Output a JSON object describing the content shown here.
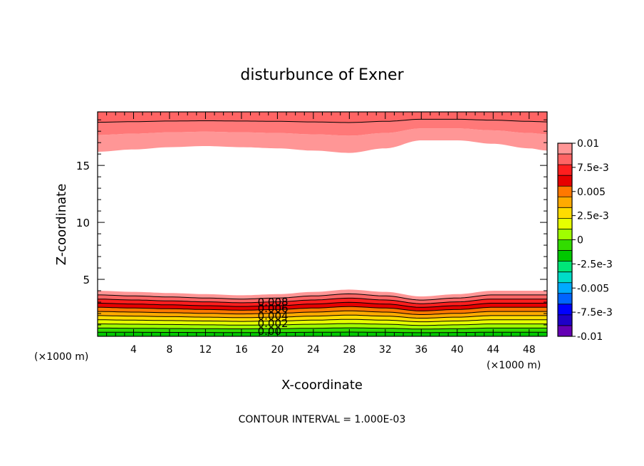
{
  "chart_data": {
    "type": "contour",
    "title": "disturbunce of Exner",
    "xlabel": "X-coordinate",
    "ylabel": "Z-coordinate",
    "x_unit_left": "(×1000 m)",
    "x_unit_right": "(×1000 m)",
    "footer": "CONTOUR INTERVAL = 1.000E-03",
    "xlim": [
      0,
      50
    ],
    "ylim": [
      0,
      19.7
    ],
    "x_ticks": [
      4,
      8,
      12,
      16,
      20,
      24,
      28,
      32,
      36,
      40,
      44,
      48
    ],
    "y_ticks": [
      5,
      10,
      15
    ],
    "contour_labels": [
      "0.008",
      "0.006",
      "0.004",
      "0.002",
      "0.00"
    ],
    "levels": [
      0,
      0.001,
      0.002,
      0.003,
      0.004,
      0.005,
      0.006,
      0.007,
      0.008,
      0.009,
      0.01
    ],
    "lower_band_top_profile": {
      "x": [
        0,
        4,
        8,
        12,
        16,
        20,
        24,
        28,
        32,
        36,
        40,
        44,
        48,
        50
      ],
      "z": [
        4.0,
        3.9,
        3.8,
        3.7,
        3.6,
        3.7,
        3.9,
        4.1,
        3.9,
        3.5,
        3.7,
        4.0,
        4.0,
        4.0
      ]
    },
    "upper_band_bottom_profile": {
      "x": [
        0,
        4,
        8,
        12,
        16,
        20,
        24,
        28,
        32,
        36,
        40,
        44,
        48,
        50
      ],
      "z": [
        16.2,
        16.4,
        16.6,
        16.7,
        16.6,
        16.5,
        16.3,
        16.1,
        16.5,
        17.2,
        17.2,
        16.9,
        16.5,
        16.3
      ]
    },
    "colorbar": {
      "labels": [
        "0.01",
        "7.5e-3",
        "0.005",
        "2.5e-3",
        "0",
        "-2.5e-3",
        "-0.005",
        "-7.5e-3",
        "-0.01"
      ],
      "colors": [
        "#ff9696",
        "#ff6464",
        "#ff1e1e",
        "#e60000",
        "#ff7800",
        "#ffaa00",
        "#ffdc00",
        "#e6ff00",
        "#a0ff00",
        "#32dc00",
        "#00c800",
        "#00e678",
        "#00dcc8",
        "#00aaff",
        "#0064ff",
        "#0000ff",
        "#1e00c8",
        "#6400b4"
      ]
    }
  }
}
